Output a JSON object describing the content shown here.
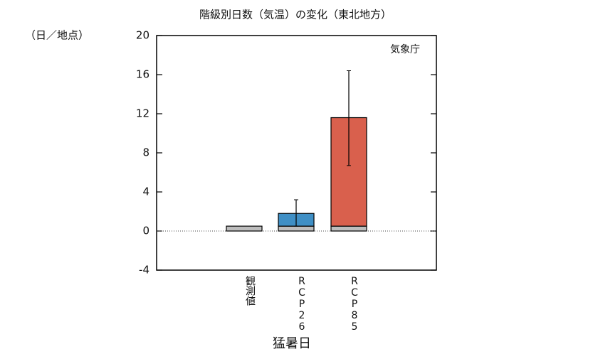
{
  "chart_data": {
    "type": "bar",
    "title": "階級別日数（気温）の変化（東北地方）",
    "y_unit": "（日／地点）",
    "x_label": "猛暑日",
    "annotation": "気象庁",
    "categories": [
      "観測値",
      "RCP26",
      "RCP85"
    ],
    "series": [
      {
        "color": "#bdbdbd",
        "values": [
          0.5,
          0.5,
          0.5
        ]
      },
      {
        "colors": [
          null,
          "#3f8fc5",
          "#d9604d"
        ],
        "values": [
          null,
          1.3,
          11.1
        ],
        "errors": [
          null,
          [
            0.5,
            3.2
          ],
          [
            6.7,
            16.4
          ]
        ]
      }
    ],
    "ylim": [
      -4,
      20
    ],
    "yticks": [
      -4,
      0,
      4,
      8,
      12,
      16,
      20
    ],
    "zero_line": true
  }
}
